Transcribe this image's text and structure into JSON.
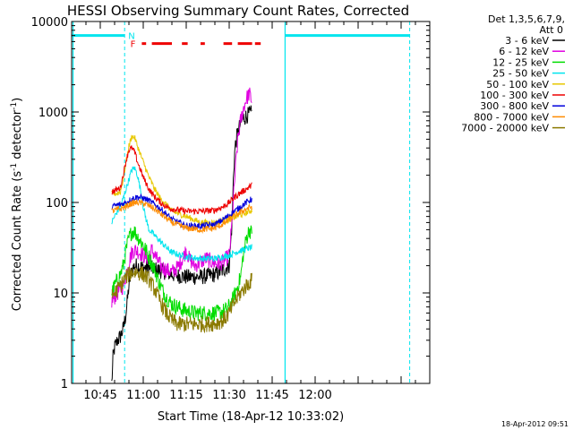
{
  "chart_data": {
    "type": "line",
    "title": "HESSI Observing Summary Count Rates, Corrected",
    "xlabel": "Start Time (18-Apr-12 10:33:02)",
    "ylabel": "Corrected Count Rate (s",
    "ylabel_sup1": "-1",
    "ylabel_mid": " detector",
    "ylabel_sup2": "-1",
    "ylabel_end": ")",
    "yscale": "log",
    "ylim": [
      1,
      10000
    ],
    "xlim_minutes": [
      35,
      160
    ],
    "y_ticks": [
      "1",
      "10",
      "100",
      "1000",
      "10000"
    ],
    "x_ticks": [
      {
        "label": "10:45",
        "min": 45
      },
      {
        "label": "11:00",
        "min": 60
      },
      {
        "label": "11:15",
        "min": 75
      },
      {
        "label": "11:30",
        "min": 90
      },
      {
        "label": "11:45",
        "min": 105
      },
      {
        "label": "12:00",
        "min": 120
      }
    ],
    "legend_header": [
      "Det 1,3,5,6,7,9,",
      "Att 0"
    ],
    "timestamp": "18-Apr-2012 09:51",
    "markers": {
      "night_label": "N",
      "flare_label": "F",
      "day_bar_color": "#00e5ee",
      "flare_bar_color": "#ee0000",
      "day_segments": [
        [
          35,
          53.5
        ],
        [
          109.5,
          153
        ]
      ],
      "day_level": 7000,
      "flare_segments": [
        [
          59.5,
          61
        ],
        [
          63,
          70
        ],
        [
          73.5,
          75.5
        ],
        [
          80,
          81.5
        ],
        [
          88,
          91
        ],
        [
          93,
          98
        ],
        [
          99,
          101
        ]
      ],
      "flare_level": 5700,
      "vlines_solid": [
        35.5,
        109.5
      ],
      "vlines_dashed": [
        53.5,
        153
      ]
    },
    "series": [
      {
        "name": "3 - 6 keV",
        "color": "#000000",
        "points": [
          [
            49,
            1
          ],
          [
            49.5,
            2
          ],
          [
            50,
            2.5
          ],
          [
            51,
            3
          ],
          [
            52,
            3.3
          ],
          [
            53,
            4
          ],
          [
            54,
            6
          ],
          [
            55,
            12
          ],
          [
            56,
            18
          ],
          [
            57,
            20
          ],
          [
            58,
            20
          ],
          [
            60,
            19
          ],
          [
            62,
            19
          ],
          [
            65,
            18
          ],
          [
            68,
            17
          ],
          [
            70,
            16
          ],
          [
            75,
            15
          ],
          [
            80,
            15
          ],
          [
            85,
            16
          ],
          [
            88,
            18
          ],
          [
            90,
            20
          ],
          [
            91,
            60
          ],
          [
            91.5,
            200
          ],
          [
            92,
            400
          ],
          [
            93,
            600
          ],
          [
            94,
            750
          ],
          [
            95,
            850
          ],
          [
            96,
            900
          ],
          [
            97,
            950
          ],
          [
            98,
            980
          ]
        ]
      },
      {
        "name": "6 - 12 keV",
        "color": "#e000e0",
        "points": [
          [
            49,
            8
          ],
          [
            50,
            9
          ],
          [
            51,
            10
          ],
          [
            52,
            11
          ],
          [
            53,
            12
          ],
          [
            54,
            16
          ],
          [
            55,
            22
          ],
          [
            56,
            28
          ],
          [
            57,
            30
          ],
          [
            58,
            29
          ],
          [
            60,
            26
          ],
          [
            62,
            24
          ],
          [
            63,
            30
          ],
          [
            64,
            26
          ],
          [
            66,
            20
          ],
          [
            68,
            18
          ],
          [
            70,
            17
          ],
          [
            72,
            19
          ],
          [
            74,
            25
          ],
          [
            75,
            30
          ],
          [
            76,
            24
          ],
          [
            78,
            20
          ],
          [
            80,
            22
          ],
          [
            82,
            24
          ],
          [
            84,
            22
          ],
          [
            86,
            21
          ],
          [
            88,
            22
          ],
          [
            90,
            26
          ],
          [
            91,
            60
          ],
          [
            92,
            200
          ],
          [
            93,
            500
          ],
          [
            94,
            800
          ],
          [
            95,
            1100
          ],
          [
            96,
            1400
          ],
          [
            97,
            1600
          ],
          [
            98,
            1300
          ]
        ]
      },
      {
        "name": "12 - 25 keV",
        "color": "#00dd00",
        "points": [
          [
            49,
            10
          ],
          [
            50,
            12
          ],
          [
            51,
            14
          ],
          [
            52,
            16
          ],
          [
            53,
            20
          ],
          [
            54,
            30
          ],
          [
            55,
            40
          ],
          [
            56,
            48
          ],
          [
            57,
            48
          ],
          [
            58,
            42
          ],
          [
            60,
            34
          ],
          [
            62,
            25
          ],
          [
            64,
            18
          ],
          [
            66,
            12
          ],
          [
            68,
            9
          ],
          [
            70,
            7.5
          ],
          [
            74,
            6.5
          ],
          [
            78,
            6
          ],
          [
            82,
            6
          ],
          [
            86,
            6
          ],
          [
            89,
            6.5
          ],
          [
            91,
            8
          ],
          [
            93,
            12
          ],
          [
            94,
            15
          ],
          [
            95,
            28
          ],
          [
            96,
            40
          ],
          [
            97,
            50
          ],
          [
            98,
            45
          ]
        ]
      },
      {
        "name": "25 - 50 keV",
        "color": "#00e5ee",
        "points": [
          [
            49,
            60
          ],
          [
            50,
            70
          ],
          [
            51,
            80
          ],
          [
            52,
            90
          ],
          [
            53,
            110
          ],
          [
            54,
            140
          ],
          [
            55,
            180
          ],
          [
            56,
            230
          ],
          [
            57,
            240
          ],
          [
            58,
            200
          ],
          [
            59,
            140
          ],
          [
            60,
            90
          ],
          [
            61,
            65
          ],
          [
            62,
            50
          ],
          [
            65,
            40
          ],
          [
            68,
            32
          ],
          [
            70,
            28
          ],
          [
            75,
            25
          ],
          [
            80,
            24
          ],
          [
            85,
            24
          ],
          [
            90,
            26
          ],
          [
            92,
            28
          ],
          [
            95,
            30
          ],
          [
            98,
            32
          ]
        ]
      },
      {
        "name": "50 - 100 keV",
        "color": "#e8c800",
        "points": [
          [
            49,
            125
          ],
          [
            50,
            125
          ],
          [
            52,
            130
          ],
          [
            53,
            180
          ],
          [
            54,
            280
          ],
          [
            55,
            420
          ],
          [
            56,
            540
          ],
          [
            57,
            520
          ],
          [
            58,
            420
          ],
          [
            60,
            280
          ],
          [
            62,
            190
          ],
          [
            64,
            140
          ],
          [
            66,
            110
          ],
          [
            68,
            95
          ],
          [
            70,
            80
          ],
          [
            75,
            70
          ],
          [
            80,
            60
          ],
          [
            85,
            60
          ],
          [
            90,
            65
          ],
          [
            95,
            75
          ],
          [
            98,
            82
          ]
        ]
      },
      {
        "name": "100 - 300 keV",
        "color": "#ee0000",
        "points": [
          [
            49,
            130
          ],
          [
            50,
            135
          ],
          [
            52,
            145
          ],
          [
            53,
            200
          ],
          [
            54,
            290
          ],
          [
            55,
            380
          ],
          [
            56,
            400
          ],
          [
            57,
            360
          ],
          [
            58,
            280
          ],
          [
            60,
            190
          ],
          [
            62,
            140
          ],
          [
            64,
            115
          ],
          [
            66,
            100
          ],
          [
            68,
            90
          ],
          [
            70,
            85
          ],
          [
            75,
            80
          ],
          [
            80,
            80
          ],
          [
            85,
            82
          ],
          [
            88,
            90
          ],
          [
            90,
            100
          ],
          [
            92,
            115
          ],
          [
            95,
            135
          ],
          [
            98,
            155
          ]
        ]
      },
      {
        "name": "300 - 800 keV",
        "color": "#0000dd",
        "points": [
          [
            49,
            90
          ],
          [
            50,
            92
          ],
          [
            52,
            95
          ],
          [
            54,
            100
          ],
          [
            56,
            110
          ],
          [
            58,
            115
          ],
          [
            60,
            112
          ],
          [
            62,
            105
          ],
          [
            64,
            95
          ],
          [
            66,
            85
          ],
          [
            68,
            75
          ],
          [
            70,
            65
          ],
          [
            75,
            55
          ],
          [
            80,
            55
          ],
          [
            85,
            57
          ],
          [
            88,
            65
          ],
          [
            90,
            72
          ],
          [
            93,
            85
          ],
          [
            96,
            100
          ],
          [
            98,
            110
          ]
        ]
      },
      {
        "name": "800 - 7000 keV",
        "color": "#ff8c00",
        "points": [
          [
            49,
            80
          ],
          [
            50,
            82
          ],
          [
            52,
            85
          ],
          [
            54,
            90
          ],
          [
            56,
            98
          ],
          [
            58,
            100
          ],
          [
            60,
            98
          ],
          [
            62,
            92
          ],
          [
            64,
            85
          ],
          [
            66,
            75
          ],
          [
            68,
            67
          ],
          [
            70,
            60
          ],
          [
            75,
            52
          ],
          [
            80,
            50
          ],
          [
            85,
            52
          ],
          [
            88,
            58
          ],
          [
            90,
            65
          ],
          [
            93,
            75
          ],
          [
            96,
            85
          ],
          [
            98,
            90
          ]
        ]
      },
      {
        "name": "7000 - 20000 keV",
        "color": "#8b7a00",
        "points": [
          [
            49,
            9
          ],
          [
            50,
            10
          ],
          [
            52,
            12
          ],
          [
            54,
            15
          ],
          [
            56,
            17
          ],
          [
            58,
            17
          ],
          [
            60,
            16
          ],
          [
            62,
            14
          ],
          [
            64,
            11
          ],
          [
            66,
            8
          ],
          [
            68,
            6
          ],
          [
            70,
            5
          ],
          [
            72,
            4.5
          ],
          [
            75,
            4.5
          ],
          [
            80,
            4.5
          ],
          [
            85,
            4.6
          ],
          [
            88,
            5
          ],
          [
            90,
            6
          ],
          [
            92,
            8
          ],
          [
            94,
            10
          ],
          [
            96,
            12
          ],
          [
            98,
            14
          ]
        ]
      }
    ]
  }
}
